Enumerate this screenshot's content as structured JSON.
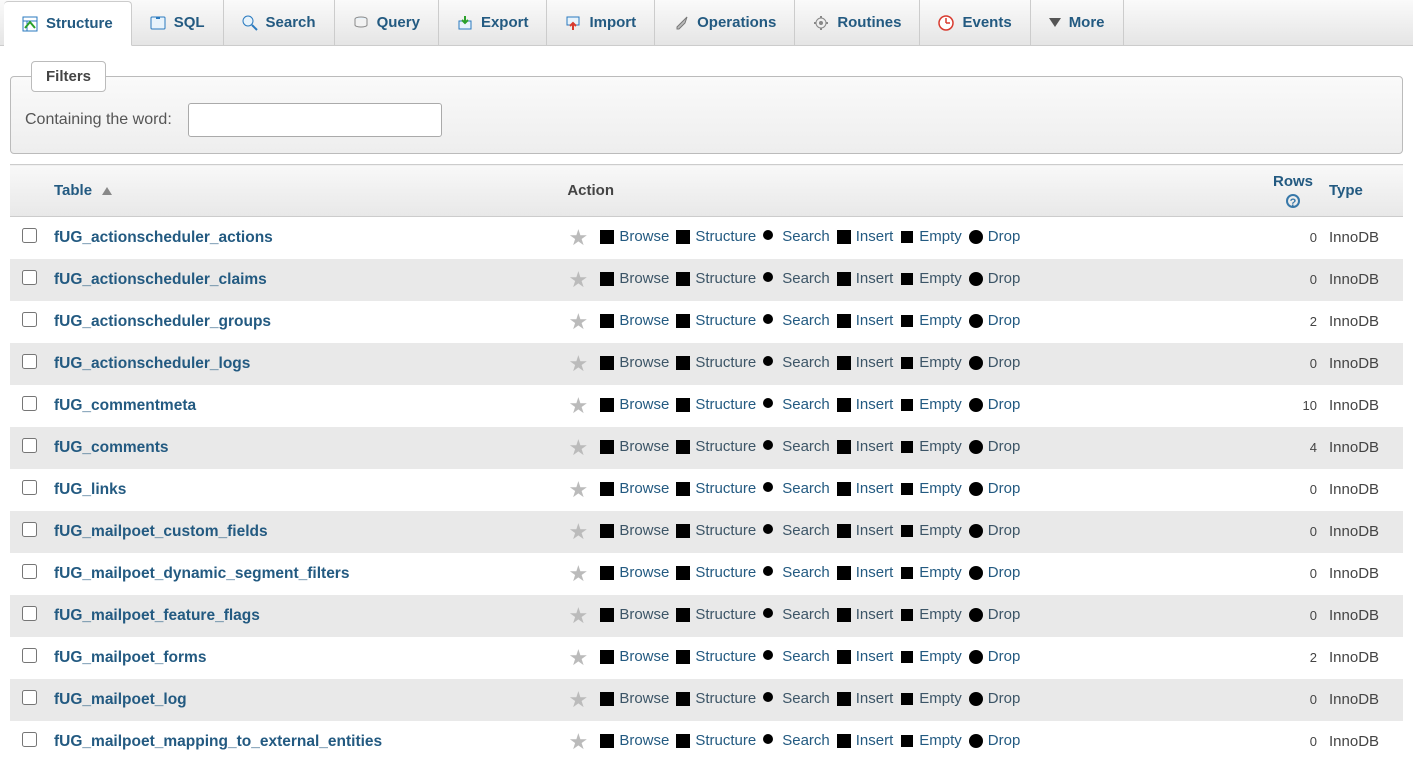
{
  "tabs": [
    {
      "id": "structure",
      "label": "Structure",
      "active": true
    },
    {
      "id": "sql",
      "label": "SQL"
    },
    {
      "id": "search",
      "label": "Search"
    },
    {
      "id": "query",
      "label": "Query"
    },
    {
      "id": "export",
      "label": "Export"
    },
    {
      "id": "import",
      "label": "Import"
    },
    {
      "id": "operations",
      "label": "Operations"
    },
    {
      "id": "routines",
      "label": "Routines"
    },
    {
      "id": "events",
      "label": "Events"
    },
    {
      "id": "more",
      "label": "More"
    }
  ],
  "filters": {
    "legend": "Filters",
    "label": "Containing the word:",
    "value": ""
  },
  "columns": {
    "table": "Table",
    "action": "Action",
    "rows": "Rows",
    "type": "Type"
  },
  "action_labels": {
    "browse": "Browse",
    "structure": "Structure",
    "search": "Search",
    "insert": "Insert",
    "empty": "Empty",
    "drop": "Drop"
  },
  "tables": [
    {
      "name": "fUG_actionscheduler_actions",
      "rows": 0,
      "type": "InnoDB",
      "dim": false
    },
    {
      "name": "fUG_actionscheduler_claims",
      "rows": 0,
      "type": "InnoDB",
      "dim": true
    },
    {
      "name": "fUG_actionscheduler_groups",
      "rows": 2,
      "type": "InnoDB",
      "dim": false
    },
    {
      "name": "fUG_actionscheduler_logs",
      "rows": 0,
      "type": "InnoDB",
      "dim": true
    },
    {
      "name": "fUG_commentmeta",
      "rows": 10,
      "type": "InnoDB",
      "dim": false
    },
    {
      "name": "fUG_comments",
      "rows": 4,
      "type": "InnoDB",
      "dim": true
    },
    {
      "name": "fUG_links",
      "rows": 0,
      "type": "InnoDB",
      "dim": false
    },
    {
      "name": "fUG_mailpoet_custom_fields",
      "rows": 0,
      "type": "InnoDB",
      "dim": true
    },
    {
      "name": "fUG_mailpoet_dynamic_segment_filters",
      "rows": 0,
      "type": "InnoDB",
      "dim": false
    },
    {
      "name": "fUG_mailpoet_feature_flags",
      "rows": 0,
      "type": "InnoDB",
      "dim": true
    },
    {
      "name": "fUG_mailpoet_forms",
      "rows": 2,
      "type": "InnoDB",
      "dim": false
    },
    {
      "name": "fUG_mailpoet_log",
      "rows": 0,
      "type": "InnoDB",
      "dim": true
    },
    {
      "name": "fUG_mailpoet_mapping_to_external_entities",
      "rows": 0,
      "type": "InnoDB",
      "dim": false
    }
  ],
  "colors": {
    "link": "#235a81",
    "row_even": "#e9e9e9",
    "row_odd": "#ffffff",
    "drop": "#d83a2e"
  }
}
